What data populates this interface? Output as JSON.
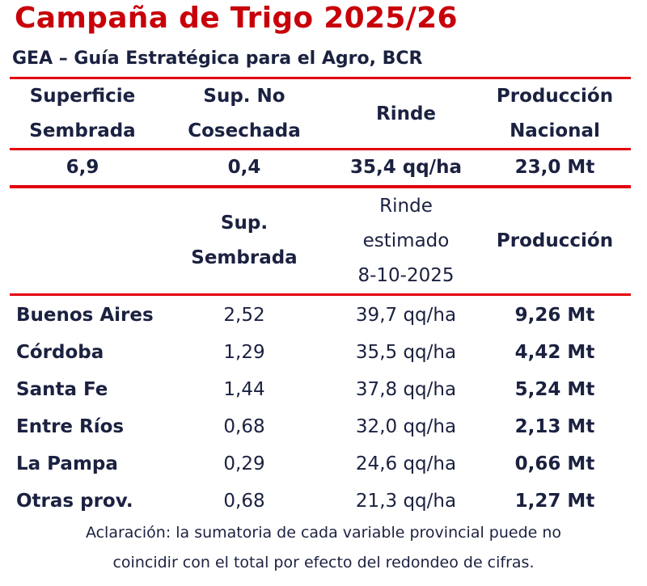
{
  "title": "Campaña de Trigo 2025/26",
  "subtitle": "GEA – Guía Estratégica para el Agro, BCR",
  "national": {
    "headers": [
      [
        "Superficie",
        "Sembrada"
      ],
      [
        "Sup. No",
        "Cosechada"
      ],
      [
        "Rinde"
      ],
      [
        "Producción",
        "Nacional"
      ]
    ],
    "values": [
      "6,9",
      "0,4",
      "35,4 qq/ha",
      "23,0 Mt"
    ]
  },
  "provincial": {
    "headers": [
      [],
      [
        "Sup.",
        "Sembrada"
      ],
      [
        "Rinde",
        "estimado",
        "8-10-2025"
      ],
      [
        "Producción"
      ]
    ],
    "rows": [
      {
        "province": "Buenos Aires",
        "area": "2,52",
        "yield": "39,7 qq/ha",
        "production": "9,26 Mt"
      },
      {
        "province": "Córdoba",
        "area": "1,29",
        "yield": "35,5 qq/ha",
        "production": "4,42 Mt"
      },
      {
        "province": "Santa Fe",
        "area": "1,44",
        "yield": "37,8 qq/ha",
        "production": "5,24 Mt"
      },
      {
        "province": "Entre Ríos",
        "area": "0,68",
        "yield": "32,0 qq/ha",
        "production": "2,13 Mt"
      },
      {
        "province": "La Pampa",
        "area": "0,29",
        "yield": "24,6 qq/ha",
        "production": "0,66 Mt"
      },
      {
        "province": "Otras prov.",
        "area": "0,68",
        "yield": "21,3 qq/ha",
        "production": "1,27 Mt"
      }
    ]
  },
  "note": [
    "Aclaración: la sumatoria de cada variable provincial puede no",
    "coincidir con el total por efecto del redondeo de cifras."
  ],
  "colors": {
    "title": "#c8000a",
    "rule": "#e2000f",
    "text": "#1b2140"
  }
}
